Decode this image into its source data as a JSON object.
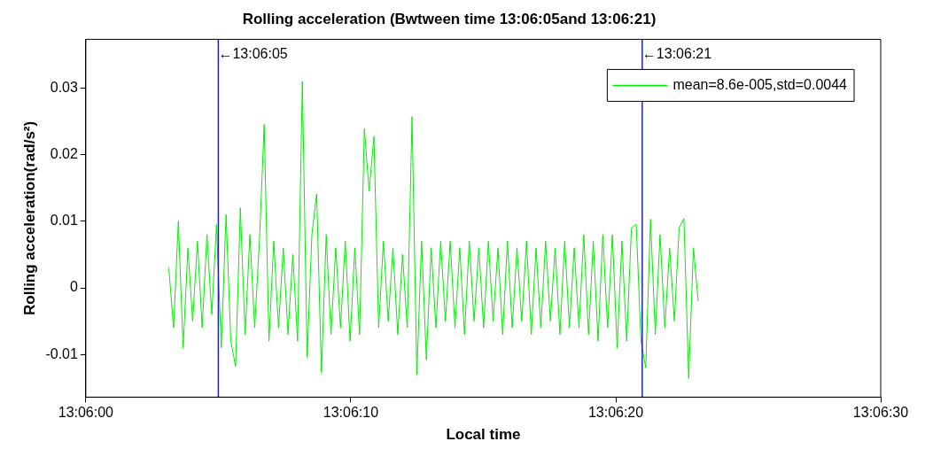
{
  "chart_data": {
    "type": "line",
    "title": "Rolling acceleration (Bwtween time 13:06:05and 13:06:21)",
    "xlabel": "Local time",
    "ylabel": "Rolling acceleration(rad/s²)",
    "xlim": [
      13.1,
      13.108333
    ],
    "xticks": [
      {
        "value": 13.1,
        "label": "13:06:00"
      },
      {
        "value": 13.102778,
        "label": "13:06:10"
      },
      {
        "value": 13.105556,
        "label": "13:06:20"
      },
      {
        "value": 13.108333,
        "label": "13:06:30"
      }
    ],
    "ylim": [
      -0.0164,
      0.0373
    ],
    "yticks": [
      -0.01,
      0,
      0.01,
      0.02,
      0.03
    ],
    "grid": false,
    "legend": "top right",
    "marker": "none",
    "line_style": "solid",
    "ref_lines": [
      {
        "axis": "x",
        "value": 13.101389,
        "label": "←13:06:05",
        "color": "#2020c0"
      },
      {
        "axis": "x",
        "value": 13.105833,
        "label": "←13:06:21",
        "color": "#2020c0"
      }
    ],
    "series": [
      {
        "name": "mean=8.6e-005,std=0.0044",
        "color": "#00ee00",
        "x": [
          13.10087,
          13.10092,
          13.10097,
          13.10102,
          13.10107,
          13.10112,
          13.10117,
          13.10122,
          13.10127,
          13.10132,
          13.10137,
          13.10142,
          13.10147,
          13.10152,
          13.10157,
          13.10162,
          13.10167,
          13.10172,
          13.10177,
          13.10182,
          13.10187,
          13.10192,
          13.10197,
          13.10202,
          13.10207,
          13.10212,
          13.10217,
          13.10222,
          13.10227,
          13.10232,
          13.10237,
          13.10242,
          13.10247,
          13.10252,
          13.10257,
          13.10262,
          13.10267,
          13.10272,
          13.10277,
          13.10282,
          13.10287,
          13.10292,
          13.10297,
          13.10302,
          13.10307,
          13.10312,
          13.10317,
          13.10322,
          13.10327,
          13.10332,
          13.10337,
          13.10342,
          13.10347,
          13.10352,
          13.10357,
          13.10362,
          13.10367,
          13.10372,
          13.10377,
          13.10382,
          13.10387,
          13.10392,
          13.10397,
          13.10402,
          13.10407,
          13.10412,
          13.10417,
          13.10422,
          13.10427,
          13.10432,
          13.10437,
          13.10442,
          13.10447,
          13.10452,
          13.10457,
          13.10462,
          13.10467,
          13.10472,
          13.10477,
          13.10482,
          13.10487,
          13.10492,
          13.10497,
          13.10502,
          13.10507,
          13.10512,
          13.10517,
          13.10522,
          13.10527,
          13.10532,
          13.10537,
          13.10542,
          13.10547,
          13.10552,
          13.10557,
          13.10562,
          13.10567,
          13.10572,
          13.10577,
          13.10582,
          13.10587,
          13.10592,
          13.10597,
          13.10602,
          13.10607,
          13.10612,
          13.10617,
          13.10622,
          13.10627,
          13.10632,
          13.10637,
          13.10642
        ],
        "values": [
          0.003,
          -0.006,
          0.01,
          -0.009,
          0.006,
          -0.005,
          0.007,
          -0.006,
          0.008,
          -0.004,
          0.0095,
          -0.009,
          0.011,
          -0.008,
          -0.0118,
          0.012,
          -0.007,
          0.008,
          -0.006,
          0.007,
          0.0245,
          -0.008,
          0.007,
          -0.006,
          0.006,
          -0.007,
          0.005,
          -0.008,
          0.031,
          -0.0104,
          0.008,
          0.0141,
          -0.0127,
          0.008,
          -0.007,
          0.006,
          -0.006,
          0.007,
          -0.008,
          0.006,
          -0.007,
          0.0239,
          0.0145,
          0.0227,
          -0.006,
          0.007,
          -0.005,
          0.006,
          -0.007,
          0.005,
          -0.006,
          0.0257,
          -0.013,
          0.007,
          -0.0108,
          0.006,
          -0.006,
          0.007,
          -0.005,
          0.007,
          -0.006,
          0.006,
          -0.007,
          0.007,
          -0.005,
          0.006,
          -0.006,
          0.007,
          -0.005,
          0.006,
          -0.007,
          0.007,
          -0.006,
          0.006,
          -0.005,
          0.007,
          -0.007,
          0.006,
          -0.006,
          0.007,
          -0.005,
          0.006,
          -0.007,
          0.007,
          -0.006,
          0.006,
          -0.006,
          0.008,
          -0.007,
          0.007,
          -0.008,
          0.008,
          -0.006,
          0.008,
          -0.009,
          0.007,
          -0.008,
          0.009,
          0.0095,
          -0.008,
          -0.012,
          0.0103,
          -0.007,
          0.008,
          -0.006,
          0.006,
          -0.005,
          0.009,
          0.0104,
          -0.0136,
          0.006,
          -0.002
        ]
      }
    ]
  }
}
